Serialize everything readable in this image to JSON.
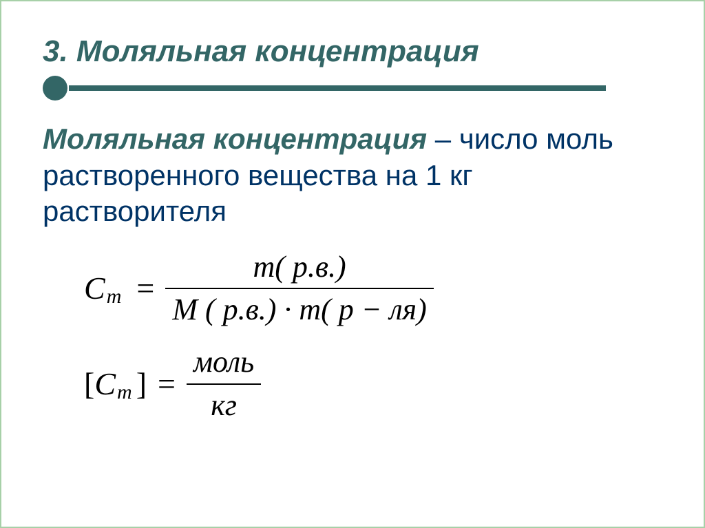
{
  "slide": {
    "title": "3. Моляльная концентрация",
    "definition_term": "Моляльная концентрация",
    "definition_rest": " – число моль растворенного вещества на 1 кг растворителя",
    "formula1": {
      "lhs_var": "C",
      "lhs_sub": "m",
      "numerator": "m( р.в.)",
      "denominator": "M ( р.в.) · m( р − ля)"
    },
    "formula2": {
      "lhs_open": "[",
      "lhs_var": "C",
      "lhs_sub": "m",
      "lhs_close": "]",
      "numerator": "моль",
      "denominator": "кг"
    }
  },
  "styles": {
    "title_color": "#336666",
    "term_color": "#336666",
    "body_color": "#003366",
    "underline_color": "#336666",
    "border_color": "#a7d0a8",
    "background": "#ffffff"
  }
}
